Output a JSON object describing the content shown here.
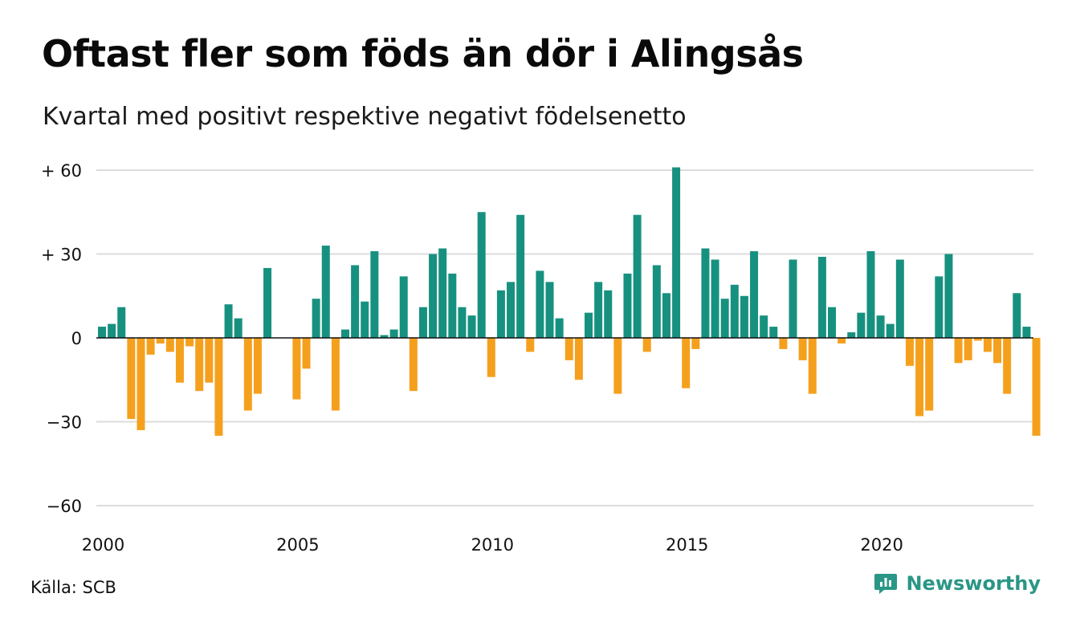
{
  "header": {
    "title": "Oftast fler som föds än dör i Alingsås",
    "subtitle": "Kvartal med positivt respektive negativt födelsenetto"
  },
  "footer": {
    "source": "Källa: SCB",
    "brand": "Newsworthy"
  },
  "colors": {
    "positive": "#17917f",
    "negative": "#f5a01d",
    "grid": "#dcdcdc",
    "zero_line": "#111111",
    "brand": "#2a9686"
  },
  "chart_data": {
    "type": "bar",
    "title": "Oftast fler som föds än dör i Alingsås",
    "subtitle": "Kvartal med positivt respektive negativt födelsenetto",
    "xlabel": "",
    "ylabel": "",
    "x_start_year": 2000,
    "periods_per_year": 4,
    "xlim": [
      2000,
      2024
    ],
    "x_ticks": [
      {
        "year": 2000,
        "label": "2000"
      },
      {
        "year": 2005,
        "label": "2005"
      },
      {
        "year": 2010,
        "label": "2010"
      },
      {
        "year": 2015,
        "label": "2015"
      },
      {
        "year": 2020,
        "label": "2020"
      }
    ],
    "ylim": [
      -60,
      60
    ],
    "y_ticks": [
      {
        "value": 60,
        "label": "+ 60"
      },
      {
        "value": 30,
        "label": "+ 30"
      },
      {
        "value": 0,
        "label": "0"
      },
      {
        "value": -30,
        "label": "−30"
      },
      {
        "value": -60,
        "label": "−60"
      }
    ],
    "grid": true,
    "legend": "none",
    "values": [
      4,
      5,
      11,
      -29,
      -33,
      -6,
      -2,
      -5,
      -16,
      -3,
      -19,
      -16,
      -35,
      12,
      7,
      -26,
      -20,
      25,
      0,
      0,
      -22,
      -11,
      14,
      33,
      -26,
      3,
      26,
      13,
      31,
      1,
      3,
      22,
      -19,
      11,
      30,
      32,
      23,
      11,
      8,
      45,
      -14,
      17,
      20,
      44,
      -5,
      24,
      20,
      7,
      -8,
      -15,
      9,
      20,
      17,
      -20,
      23,
      44,
      -5,
      26,
      16,
      61,
      -18,
      -4,
      32,
      28,
      14,
      19,
      15,
      31,
      8,
      4,
      -4,
      28,
      -8,
      -20,
      29,
      11,
      -2,
      2,
      9,
      31,
      8,
      5,
      28,
      -10,
      -28,
      -26,
      22,
      30,
      -9,
      -8,
      -1,
      -5,
      -9,
      -20,
      16,
      4,
      -35
    ]
  }
}
